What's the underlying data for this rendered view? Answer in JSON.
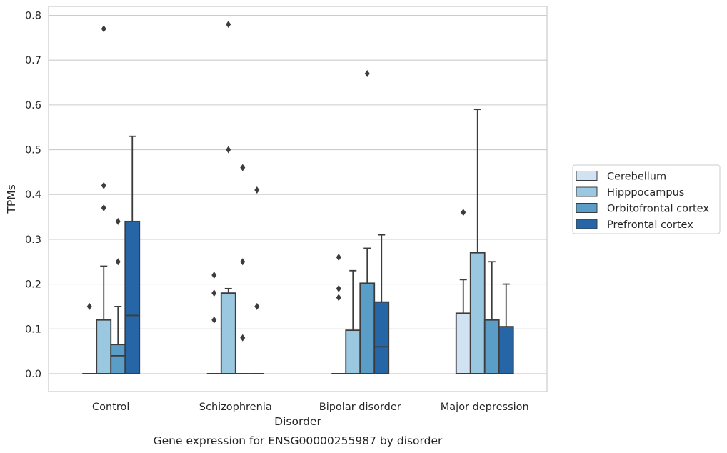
{
  "chart_data": {
    "type": "box",
    "caption": "Gene expression for ENSG00000255987 by disorder",
    "xlabel": "Disorder",
    "ylabel": "TPMs",
    "ylim": [
      -0.04,
      0.82
    ],
    "yticks": [
      "0.0",
      "0.1",
      "0.2",
      "0.3",
      "0.4",
      "0.5",
      "0.6",
      "0.7",
      "0.8"
    ],
    "categories": [
      "Control",
      "Schizophrenia",
      "Bipolar disorder",
      "Major depression"
    ],
    "grid": true,
    "legend_position": "right",
    "series": [
      {
        "name": "Cerebellum",
        "color": "#d1e2f2",
        "boxes": [
          {
            "q1": 0,
            "median": 0,
            "q3": 0,
            "whisker_low": 0,
            "whisker_high": 0,
            "outliers": [
              0.15
            ]
          },
          {
            "q1": 0,
            "median": 0,
            "q3": 0,
            "whisker_low": 0,
            "whisker_high": 0,
            "outliers": [
              0.12,
              0.18,
              0.22
            ]
          },
          {
            "q1": 0,
            "median": 0,
            "q3": 0,
            "whisker_low": 0,
            "whisker_high": 0,
            "outliers": [
              0.17,
              0.19,
              0.26
            ]
          },
          {
            "q1": 0,
            "median": 0,
            "q3": 0.135,
            "whisker_low": 0,
            "whisker_high": 0.21,
            "outliers": [
              0.36
            ]
          }
        ]
      },
      {
        "name": "Hipppocampus",
        "color": "#9ac8e0",
        "boxes": [
          {
            "q1": 0,
            "median": 0,
            "q3": 0.12,
            "whisker_low": 0,
            "whisker_high": 0.24,
            "outliers": [
              0.37,
              0.42,
              0.77
            ]
          },
          {
            "q1": 0,
            "median": 0,
            "q3": 0.18,
            "whisker_low": 0,
            "whisker_high": 0.19,
            "outliers": [
              0.5,
              0.78
            ]
          },
          {
            "q1": 0,
            "median": 0,
            "q3": 0.097,
            "whisker_low": 0,
            "whisker_high": 0.23,
            "outliers": []
          },
          {
            "q1": 0,
            "median": 0,
            "q3": 0.27,
            "whisker_low": 0,
            "whisker_high": 0.59,
            "outliers": []
          }
        ]
      },
      {
        "name": "Orbitofrontal cortex",
        "color": "#5a9ec8",
        "boxes": [
          {
            "q1": 0,
            "median": 0.04,
            "q3": 0.065,
            "whisker_low": 0,
            "whisker_high": 0.15,
            "outliers": [
              0.25,
              0.34
            ]
          },
          {
            "q1": 0,
            "median": 0,
            "q3": 0,
            "whisker_low": 0,
            "whisker_high": 0,
            "outliers": [
              0.08,
              0.25,
              0.46
            ]
          },
          {
            "q1": 0,
            "median": 0,
            "q3": 0.202,
            "whisker_low": 0,
            "whisker_high": 0.28,
            "outliers": [
              0.67
            ]
          },
          {
            "q1": 0,
            "median": 0,
            "q3": 0.12,
            "whisker_low": 0,
            "whisker_high": 0.25,
            "outliers": []
          }
        ]
      },
      {
        "name": "Prefrontal cortex",
        "color": "#2666a6",
        "boxes": [
          {
            "q1": 0,
            "median": 0.13,
            "q3": 0.34,
            "whisker_low": 0,
            "whisker_high": 0.53,
            "outliers": []
          },
          {
            "q1": 0,
            "median": 0,
            "q3": 0,
            "whisker_low": 0,
            "whisker_high": 0,
            "outliers": [
              0.15,
              0.41
            ]
          },
          {
            "q1": 0,
            "median": 0.06,
            "q3": 0.16,
            "whisker_low": 0,
            "whisker_high": 0.31,
            "outliers": []
          },
          {
            "q1": 0,
            "median": 0,
            "q3": 0.105,
            "whisker_low": 0,
            "whisker_high": 0.2,
            "outliers": []
          }
        ]
      }
    ]
  }
}
